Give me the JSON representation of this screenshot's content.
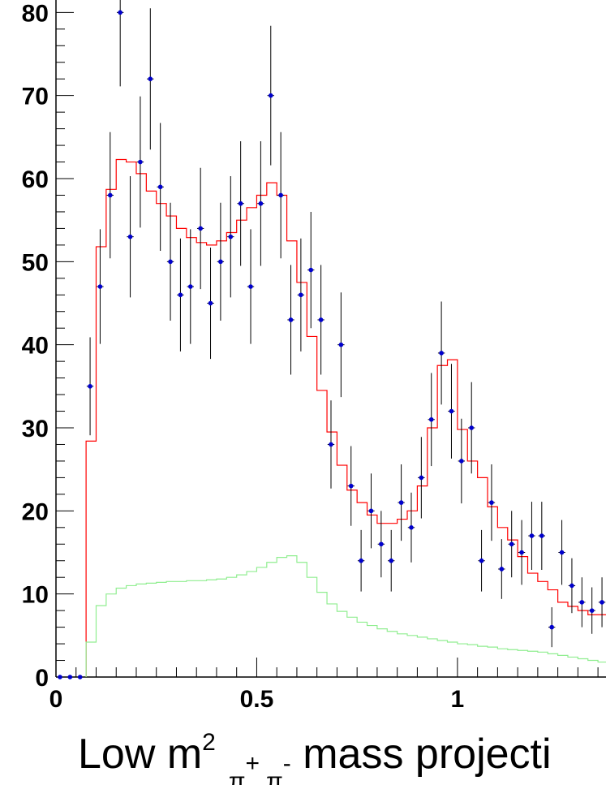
{
  "chart_data": {
    "type": "line",
    "xlabel": {
      "prefix": "Low m",
      "sup": "2",
      "sub1": "π",
      "sup1": "+",
      "sub2": "π",
      "sup2": "-",
      "suffix": " mass projecti"
    },
    "xlim": [
      0,
      1.37
    ],
    "ylim": [
      0,
      81.5
    ],
    "x_ticks": [
      0,
      0.5,
      1
    ],
    "x_tick_labels": [
      "0",
      "0.5",
      "1"
    ],
    "y_ticks": [
      0,
      10,
      20,
      30,
      40,
      50,
      60,
      70,
      80
    ],
    "y_tick_labels": [
      "0",
      "10",
      "20",
      "30",
      "40",
      "50",
      "60",
      "70",
      "80"
    ],
    "bin_edges": [
      0.075,
      0.1,
      0.125,
      0.15,
      0.175,
      0.2,
      0.225,
      0.25,
      0.275,
      0.3,
      0.325,
      0.35,
      0.375,
      0.4,
      0.425,
      0.45,
      0.475,
      0.5,
      0.525,
      0.55,
      0.575,
      0.6,
      0.625,
      0.65,
      0.675,
      0.7,
      0.725,
      0.75,
      0.775,
      0.8,
      0.825,
      0.85,
      0.875,
      0.9,
      0.925,
      0.95,
      0.975,
      1.0,
      1.025,
      1.05,
      1.075,
      1.1,
      1.125,
      1.15,
      1.175,
      1.2,
      1.225,
      1.25,
      1.275,
      1.3,
      1.325,
      1.35,
      1.375
    ],
    "series": [
      {
        "kind": "points",
        "color": "#0000cc",
        "x": [
          0.01,
          0.035,
          0.06,
          0.085,
          0.11,
          0.135,
          0.16,
          0.185,
          0.21,
          0.235,
          0.26,
          0.285,
          0.31,
          0.335,
          0.36,
          0.385,
          0.41,
          0.435,
          0.46,
          0.485,
          0.51,
          0.535,
          0.56,
          0.585,
          0.61,
          0.635,
          0.66,
          0.685,
          0.71,
          0.735,
          0.76,
          0.785,
          0.81,
          0.835,
          0.86,
          0.885,
          0.91,
          0.935,
          0.96,
          0.985,
          1.01,
          1.035,
          1.06,
          1.085,
          1.11,
          1.135,
          1.16,
          1.185,
          1.21,
          1.235,
          1.26,
          1.285,
          1.31,
          1.335,
          1.36
        ],
        "y": [
          0,
          0,
          0,
          35,
          47,
          58,
          80,
          53,
          62,
          72,
          59,
          50,
          46,
          47,
          54,
          45,
          50,
          53,
          57,
          47,
          57,
          70,
          58,
          43,
          46,
          49,
          43,
          28,
          40,
          23,
          14,
          20,
          16,
          14,
          21,
          18,
          24,
          31,
          39,
          32,
          26,
          30,
          14,
          21,
          13,
          16,
          15,
          17,
          17,
          6,
          15,
          11,
          9,
          8,
          9
        ],
        "err": [
          0,
          0,
          0,
          5.9,
          6.9,
          7.6,
          8.9,
          7.3,
          7.9,
          8.5,
          7.7,
          7.1,
          6.8,
          6.9,
          7.3,
          6.7,
          7.1,
          7.3,
          7.5,
          6.9,
          7.5,
          8.4,
          7.6,
          6.6,
          6.8,
          7.0,
          6.6,
          5.3,
          6.3,
          4.8,
          3.7,
          4.5,
          4.0,
          3.7,
          4.6,
          4.2,
          4.9,
          5.6,
          6.2,
          5.7,
          5.1,
          5.5,
          3.7,
          4.6,
          3.6,
          4.0,
          3.9,
          4.1,
          4.1,
          2.4,
          3.9,
          3.3,
          3.0,
          2.8,
          3.0
        ]
      },
      {
        "kind": "step",
        "color": "#ff0000",
        "values": [
          28.4,
          51.8,
          58.7,
          62.3,
          62.0,
          60.6,
          58.5,
          57.0,
          55.5,
          54.0,
          52.9,
          52.3,
          52.0,
          52.5,
          53.5,
          55.0,
          56.5,
          58.0,
          59.5,
          58.0,
          52.5,
          47.5,
          41.0,
          34.5,
          29.5,
          25.5,
          22.5,
          21.0,
          19.5,
          18.5,
          18.5,
          19.0,
          20.0,
          23.0,
          30.0,
          37.5,
          38.2,
          29.8,
          26.0,
          24.0,
          20.5,
          18.0,
          16.5,
          14.5,
          12.5,
          11.5,
          10.5,
          9.0,
          8.5,
          8.0,
          7.5,
          7.5
        ]
      },
      {
        "kind": "step",
        "color": "#90ee90",
        "values": [
          4.2,
          8.6,
          10.0,
          10.7,
          11.0,
          11.2,
          11.3,
          11.4,
          11.5,
          11.5,
          11.6,
          11.6,
          11.7,
          11.8,
          12.0,
          12.3,
          12.7,
          13.2,
          13.8,
          14.4,
          14.6,
          13.8,
          12.0,
          10.2,
          8.8,
          7.9,
          7.2,
          6.6,
          6.2,
          5.8,
          5.5,
          5.2,
          5.0,
          4.8,
          4.6,
          4.4,
          4.2,
          4.0,
          3.9,
          3.7,
          3.6,
          3.4,
          3.3,
          3.2,
          3.1,
          3.0,
          2.8,
          2.6,
          2.4,
          2.2,
          2.0,
          1.8
        ]
      }
    ]
  }
}
